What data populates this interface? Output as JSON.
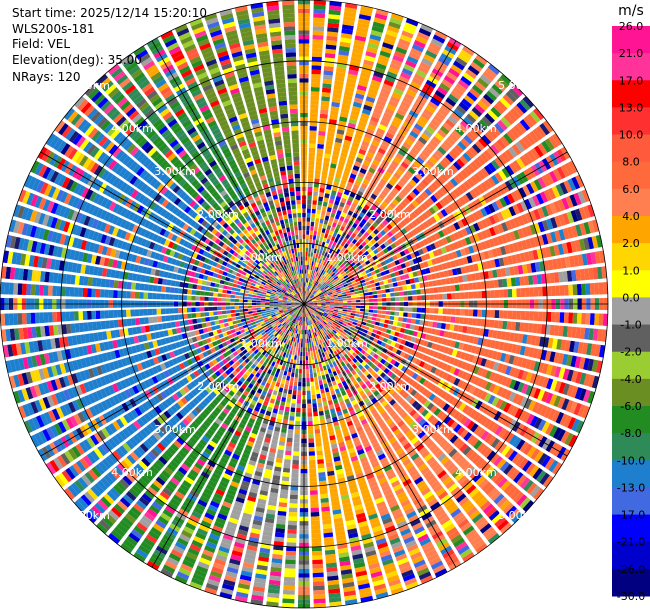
{
  "header": {
    "start_time": "Start time: 2025/12/14 15:20:10",
    "instrument": "WLS200s-181",
    "field": "Field: VEL",
    "elevation": "Elevation(deg): 35.00",
    "nrays": "NRays: 120"
  },
  "chart_data": {
    "type": "heatmap",
    "projection": "polar-ppi",
    "field": "VEL",
    "units": "m/s",
    "n_rays": 120,
    "range_rings_km": [
      "1.00km",
      "2.00km",
      "3.00km",
      "4.00km",
      "5.00km"
    ],
    "max_range_km": 5.0,
    "colorbar": {
      "unit": "m/s",
      "ticks": [
        "26.0",
        "21.0",
        "17.0",
        "13.0",
        "10.0",
        "8.0",
        "6.0",
        "4.0",
        "2.0",
        "1.0",
        "0.0",
        "-1.0",
        "-2.0",
        "-4.0",
        "-6.0",
        "-8.0",
        "-10.0",
        "-13.0",
        "-17.0",
        "-21.0",
        "-26.0",
        "-30.0"
      ],
      "colors": [
        "#ff1493",
        "#ff3399",
        "#ff0000",
        "#ff3030",
        "#ff5a3c",
        "#ff6a3c",
        "#ff7f50",
        "#ffa500",
        "#ffd700",
        "#ffff00",
        "#a0a0a0",
        "#606060",
        "#9acd32",
        "#6b8e23",
        "#228b22",
        "#2e8b57",
        "#1e7fcf",
        "#4169e1",
        "#0000ff",
        "#0000cd",
        "#000080",
        "#191970"
      ]
    },
    "sectors": [
      {
        "az_from": 0,
        "az_to": 20,
        "value": 5.0
      },
      {
        "az_from": 20,
        "az_to": 45,
        "value": 6.5
      },
      {
        "az_from": 45,
        "az_to": 135,
        "value": 9.0
      },
      {
        "az_from": 135,
        "az_to": 160,
        "value": 6.5
      },
      {
        "az_from": 160,
        "az_to": 180,
        "value": 4.5
      },
      {
        "az_from": 180,
        "az_to": 200,
        "value": 0.5
      },
      {
        "az_from": 200,
        "az_to": 225,
        "value": -5.0
      },
      {
        "az_from": 225,
        "az_to": 315,
        "value": -9.0
      },
      {
        "az_from": 315,
        "az_to": 335,
        "value": -6.0
      },
      {
        "az_from": 335,
        "az_to": 360,
        "value": -3.0
      }
    ]
  }
}
